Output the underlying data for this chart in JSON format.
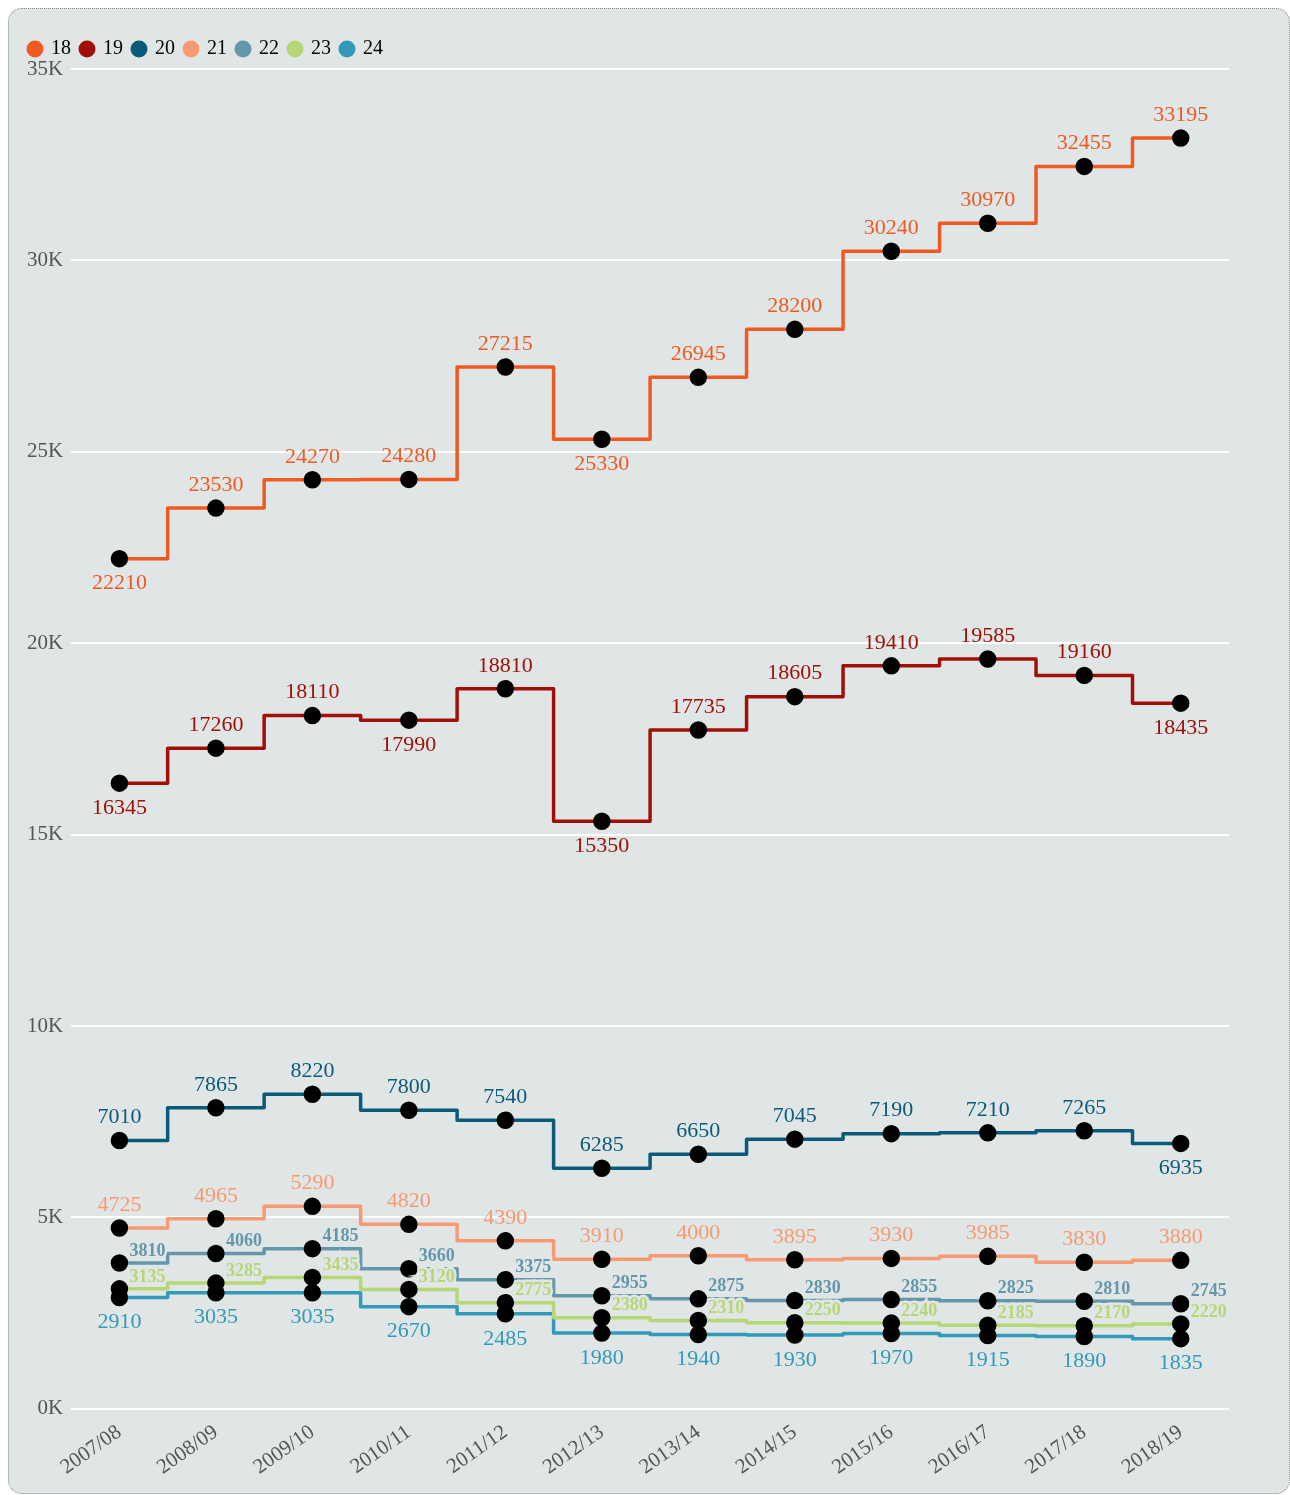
{
  "chart_data": {
    "type": "step",
    "categories": [
      "2007/08",
      "2008/09",
      "2009/10",
      "2010/11",
      "2011/12",
      "2012/13",
      "2013/14",
      "2014/15",
      "2015/16",
      "2016/17",
      "2017/18",
      "2018/19"
    ],
    "series": [
      {
        "name": "18",
        "color": "#f05a22",
        "values": [
          22210,
          23530,
          24270,
          24280,
          27215,
          25330,
          26945,
          28200,
          30240,
          30970,
          32455,
          33195
        ]
      },
      {
        "name": "19",
        "color": "#a01008",
        "values": [
          16345,
          17260,
          18110,
          17990,
          18810,
          15350,
          17735,
          18605,
          19410,
          19585,
          19160,
          18435
        ]
      },
      {
        "name": "20",
        "color": "#0b5a78",
        "values": [
          7010,
          7865,
          8220,
          7800,
          7540,
          6285,
          6650,
          7045,
          7190,
          7210,
          7265,
          6935
        ]
      },
      {
        "name": "21",
        "color": "#f79a72",
        "values": [
          4725,
          4965,
          5290,
          4820,
          4390,
          3910,
          4000,
          3895,
          3930,
          3985,
          3830,
          3880
        ]
      },
      {
        "name": "22",
        "color": "#6497aa",
        "values": [
          3810,
          4060,
          4185,
          3660,
          3375,
          2955,
          2875,
          2830,
          2855,
          2825,
          2810,
          2745
        ]
      },
      {
        "name": "23",
        "color": "#b5d776",
        "values": [
          3135,
          3285,
          3435,
          3120,
          2775,
          2380,
          2310,
          2250,
          2240,
          2185,
          2170,
          2220
        ]
      },
      {
        "name": "24",
        "color": "#3399b8",
        "values": [
          2910,
          3035,
          3035,
          2670,
          2485,
          1980,
          1940,
          1930,
          1970,
          1915,
          1890,
          1835
        ]
      }
    ],
    "ylim": [
      0,
      35000
    ],
    "yticks": [
      {
        "value": 0,
        "label": "0K"
      },
      {
        "value": 5000,
        "label": "5K"
      },
      {
        "value": 10000,
        "label": "10K"
      },
      {
        "value": 15000,
        "label": "15K"
      },
      {
        "value": 20000,
        "label": "20K"
      },
      {
        "value": 25000,
        "label": "25K"
      },
      {
        "value": 30000,
        "label": "30K"
      },
      {
        "value": 35000,
        "label": "35K"
      }
    ],
    "grid": "y",
    "legend": "top left",
    "marker": "circle",
    "line_style": "solid",
    "data_labels": true
  }
}
